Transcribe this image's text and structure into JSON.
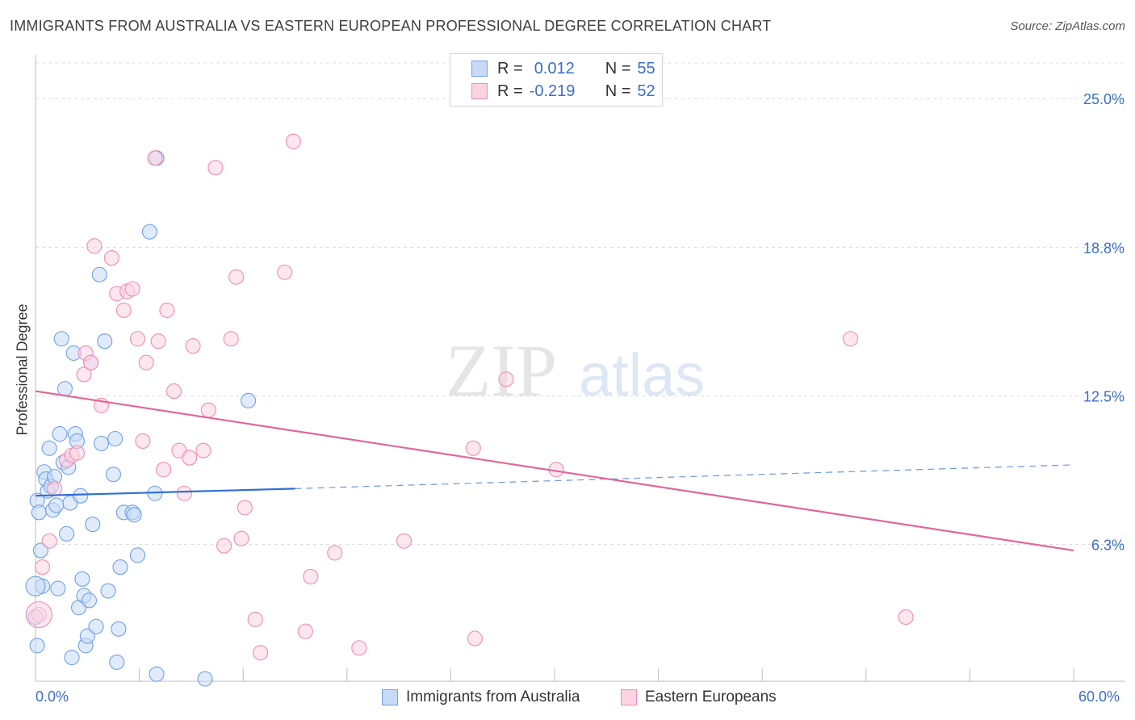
{
  "header": {
    "title": "IMMIGRANTS FROM AUSTRALIA VS EASTERN EUROPEAN PROFESSIONAL DEGREE CORRELATION CHART",
    "source": "Source: ZipAtlas.com"
  },
  "watermark": {
    "zip": "ZIP",
    "atlas": "atlas"
  },
  "legend_top": {
    "rows": [
      {
        "r_label": "R =",
        "r_value": "0.012",
        "n_label": "N =",
        "n_value": "55",
        "color": "#6fa0e8"
      },
      {
        "r_label": "R =",
        "r_value": "-0.219",
        "n_label": "N =",
        "n_value": "52",
        "color": "#f08cb0"
      }
    ]
  },
  "legend_bottom": {
    "items": [
      {
        "label": "Immigrants from Australia",
        "color": "#6fa0e8"
      },
      {
        "label": "Eastern Europeans",
        "color": "#f08cb0"
      }
    ]
  },
  "axis": {
    "y_label": "Professional Degree",
    "x_min_label": "0.0%",
    "x_max_label": "60.0%",
    "y_tick_labels": [
      "25.0%",
      "18.8%",
      "12.5%",
      "6.3%"
    ]
  },
  "chart_data": {
    "type": "scatter",
    "title": "IMMIGRANTS FROM AUSTRALIA VS EASTERN EUROPEAN PROFESSIONAL DEGREE CORRELATION CHART",
    "xlabel": "",
    "ylabel": "Professional Degree",
    "xlim": [
      0,
      60
    ],
    "ylim": [
      0.5,
      26.5
    ],
    "y_ticks": [
      25.0,
      18.75,
      12.5,
      6.25
    ],
    "x_ticks": [
      0,
      6,
      12,
      18,
      24,
      30,
      36,
      42,
      48,
      54,
      60
    ],
    "grid": true,
    "series": [
      {
        "name": "Immigrants from Australia",
        "color": "#6fa0e8",
        "R": 0.012,
        "N": 55,
        "trend": {
          "x0": 0,
          "y0": 8.3,
          "x1": 15,
          "y1": 8.6,
          "dashed_to_x": 60,
          "dashed_to_y": 9.6
        },
        "points": [
          [
            0.1,
            8.1
          ],
          [
            0.2,
            7.6
          ],
          [
            0.3,
            6.0
          ],
          [
            0.4,
            4.5
          ],
          [
            0.5,
            9.3
          ],
          [
            0.6,
            9.0
          ],
          [
            0.7,
            8.5
          ],
          [
            0.8,
            10.3
          ],
          [
            0.9,
            8.7
          ],
          [
            1.0,
            7.7
          ],
          [
            1.1,
            9.1
          ],
          [
            1.2,
            7.9
          ],
          [
            1.3,
            4.4
          ],
          [
            1.4,
            10.9
          ],
          [
            1.5,
            14.9
          ],
          [
            1.6,
            9.7
          ],
          [
            1.7,
            12.8
          ],
          [
            1.8,
            6.7
          ],
          [
            1.9,
            9.5
          ],
          [
            2.0,
            8.0
          ],
          [
            2.1,
            1.5
          ],
          [
            2.2,
            14.3
          ],
          [
            2.3,
            10.9
          ],
          [
            2.4,
            10.6
          ],
          [
            2.5,
            3.6
          ],
          [
            2.6,
            8.3
          ],
          [
            2.7,
            4.8
          ],
          [
            2.8,
            4.1
          ],
          [
            2.9,
            2.0
          ],
          [
            3.0,
            2.4
          ],
          [
            3.1,
            3.9
          ],
          [
            3.2,
            13.9
          ],
          [
            3.3,
            7.1
          ],
          [
            3.5,
            2.8
          ],
          [
            3.7,
            17.6
          ],
          [
            3.8,
            10.5
          ],
          [
            4.0,
            14.8
          ],
          [
            4.2,
            4.3
          ],
          [
            4.5,
            9.2
          ],
          [
            4.6,
            10.7
          ],
          [
            4.7,
            1.3
          ],
          [
            4.8,
            2.7
          ],
          [
            4.9,
            5.3
          ],
          [
            5.1,
            7.6
          ],
          [
            5.6,
            7.6
          ],
          [
            5.7,
            7.5
          ],
          [
            5.9,
            5.8
          ],
          [
            6.6,
            19.4
          ],
          [
            6.9,
            8.4
          ],
          [
            7.0,
            22.5
          ],
          [
            7.0,
            0.8
          ],
          [
            9.8,
            0.6
          ],
          [
            12.3,
            12.3
          ],
          [
            0.0,
            3.2
          ],
          [
            0.1,
            2.0
          ]
        ]
      },
      {
        "name": "Eastern Europeans",
        "color": "#f08cb0",
        "R": -0.219,
        "N": 52,
        "trend": {
          "x0": 0,
          "y0": 12.7,
          "x1": 60,
          "y1": 6.0
        },
        "points": [
          [
            0.2,
            3.3
          ],
          [
            0.4,
            5.3
          ],
          [
            0.8,
            6.4
          ],
          [
            1.1,
            8.6
          ],
          [
            1.8,
            9.8
          ],
          [
            2.1,
            10.0
          ],
          [
            2.4,
            10.1
          ],
          [
            2.8,
            13.4
          ],
          [
            2.9,
            14.3
          ],
          [
            3.2,
            13.9
          ],
          [
            3.4,
            18.8
          ],
          [
            3.8,
            12.1
          ],
          [
            4.4,
            18.3
          ],
          [
            4.7,
            16.8
          ],
          [
            5.1,
            16.1
          ],
          [
            5.3,
            16.9
          ],
          [
            5.6,
            17.0
          ],
          [
            5.9,
            14.9
          ],
          [
            6.2,
            10.6
          ],
          [
            6.4,
            13.9
          ],
          [
            6.9,
            22.5
          ],
          [
            7.1,
            14.8
          ],
          [
            7.4,
            9.4
          ],
          [
            7.6,
            16.1
          ],
          [
            8.0,
            12.7
          ],
          [
            8.3,
            10.2
          ],
          [
            8.6,
            8.4
          ],
          [
            8.9,
            9.9
          ],
          [
            9.1,
            14.6
          ],
          [
            9.7,
            10.2
          ],
          [
            10.0,
            11.9
          ],
          [
            10.4,
            22.1
          ],
          [
            10.9,
            6.2
          ],
          [
            11.3,
            14.9
          ],
          [
            11.6,
            17.5
          ],
          [
            11.9,
            6.5
          ],
          [
            12.1,
            7.8
          ],
          [
            12.7,
            3.1
          ],
          [
            13.0,
            1.7
          ],
          [
            14.4,
            17.7
          ],
          [
            14.9,
            23.2
          ],
          [
            15.6,
            2.6
          ],
          [
            15.9,
            4.9
          ],
          [
            17.3,
            5.9
          ],
          [
            18.7,
            1.9
          ],
          [
            21.3,
            6.4
          ],
          [
            25.3,
            10.3
          ],
          [
            25.4,
            2.3
          ],
          [
            27.2,
            13.2
          ],
          [
            30.1,
            9.4
          ],
          [
            47.1,
            14.9
          ],
          [
            50.3,
            3.2
          ]
        ]
      }
    ]
  }
}
